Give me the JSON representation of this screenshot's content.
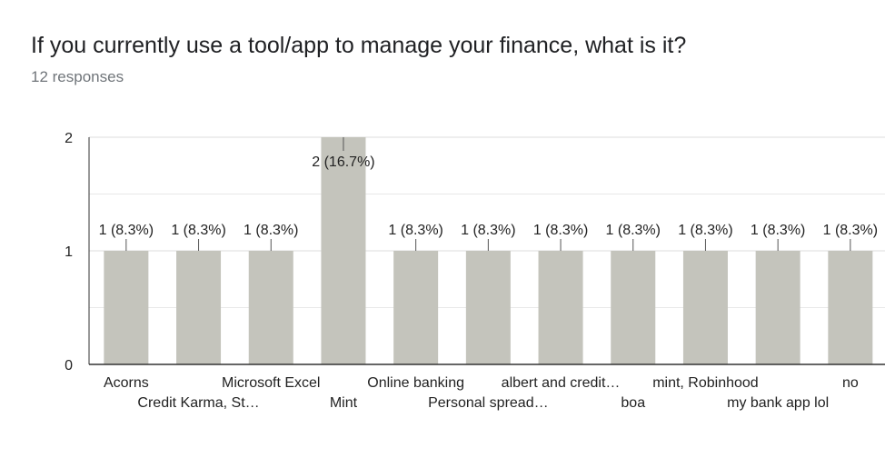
{
  "header": {
    "title": "If you currently use a tool/app to manage your finance, what is it?",
    "responses": "12 responses"
  },
  "chart_data": {
    "type": "bar",
    "categories": [
      "Acorns",
      "Credit Karma, St…",
      "Microsoft Excel",
      "Mint",
      "Online banking",
      "Personal spread…",
      "albert and credit…",
      "boa",
      "mint, Robinhood",
      "my bank app lol",
      "no"
    ],
    "values": [
      1,
      1,
      1,
      2,
      1,
      1,
      1,
      1,
      1,
      1,
      1
    ],
    "data_labels": [
      "1 (8.3%)",
      "1 (8.3%)",
      "1 (8.3%)",
      "2 (16.7%)",
      "1 (8.3%)",
      "1 (8.3%)",
      "1 (8.3%)",
      "1 (8.3%)",
      "1 (8.3%)",
      "1 (8.3%)",
      "1 (8.3%)"
    ],
    "yticks": [
      "0",
      "1",
      "2"
    ],
    "ylim": [
      0,
      2
    ],
    "grid": true,
    "bar_color": "#c4c4bc",
    "gridline_color": "#e8e8e8",
    "axis_color": "#333333",
    "tick_color": "#555555"
  }
}
